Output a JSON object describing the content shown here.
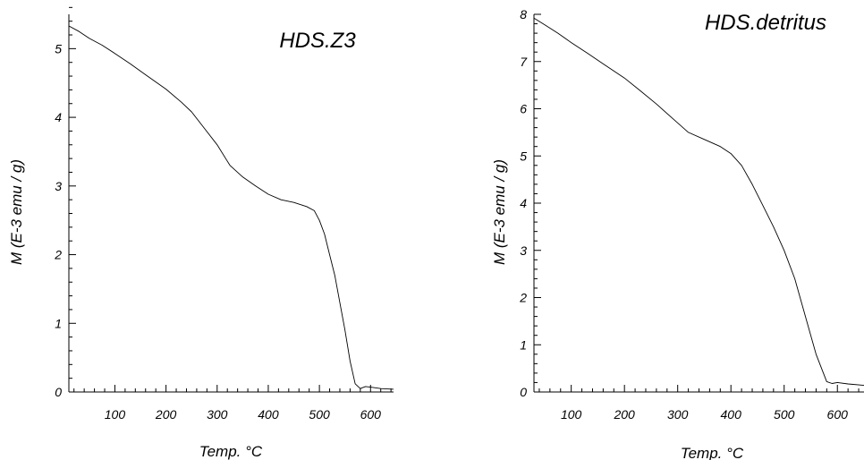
{
  "chart_data": [
    {
      "type": "line",
      "title": "HDS.Z3",
      "xlabel": "Temp. °C",
      "ylabel": "M (E-3 emu / g)",
      "xlim": [
        10,
        645
      ],
      "ylim": [
        0,
        5.5
      ],
      "xticks": [
        100,
        200,
        300,
        400,
        500,
        600
      ],
      "yticks": [
        0,
        1,
        2,
        3,
        4,
        5
      ],
      "grid": false,
      "legend": "none",
      "series": [
        {
          "x": [
            10,
            30,
            50,
            75,
            100,
            130,
            160,
            200,
            230,
            250,
            275,
            300,
            325,
            350,
            375,
            400,
            425,
            450,
            475,
            490,
            500,
            510,
            520,
            530,
            540,
            550,
            560,
            570,
            580,
            590,
            600,
            620,
            645
          ],
          "y": [
            5.33,
            5.25,
            5.15,
            5.05,
            4.93,
            4.78,
            4.62,
            4.41,
            4.22,
            4.08,
            3.84,
            3.6,
            3.3,
            3.13,
            3.0,
            2.88,
            2.8,
            2.76,
            2.7,
            2.64,
            2.5,
            2.3,
            2.0,
            1.7,
            1.3,
            0.9,
            0.45,
            0.12,
            0.05,
            0.08,
            0.07,
            0.05,
            0.04
          ]
        }
      ]
    },
    {
      "type": "line",
      "title": "HDS.detritus",
      "xlabel": "Temp. °C",
      "ylabel": "M (E-3 emu / g)",
      "xlim": [
        30,
        650
      ],
      "ylim": [
        0,
        8
      ],
      "xticks": [
        100,
        200,
        300,
        400,
        500,
        600
      ],
      "yticks": [
        0,
        1,
        2,
        3,
        4,
        5,
        6,
        7,
        8
      ],
      "grid": false,
      "legend": "none",
      "series": [
        {
          "x": [
            30,
            50,
            75,
            100,
            130,
            160,
            200,
            230,
            260,
            290,
            320,
            350,
            380,
            400,
            420,
            440,
            460,
            480,
            500,
            520,
            540,
            560,
            580,
            590,
            600,
            620,
            650
          ],
          "y": [
            7.92,
            7.78,
            7.6,
            7.4,
            7.18,
            6.95,
            6.65,
            6.38,
            6.1,
            5.8,
            5.5,
            5.35,
            5.2,
            5.05,
            4.8,
            4.4,
            3.95,
            3.5,
            3.0,
            2.4,
            1.6,
            0.8,
            0.22,
            0.18,
            0.2,
            0.17,
            0.14
          ]
        }
      ]
    }
  ]
}
